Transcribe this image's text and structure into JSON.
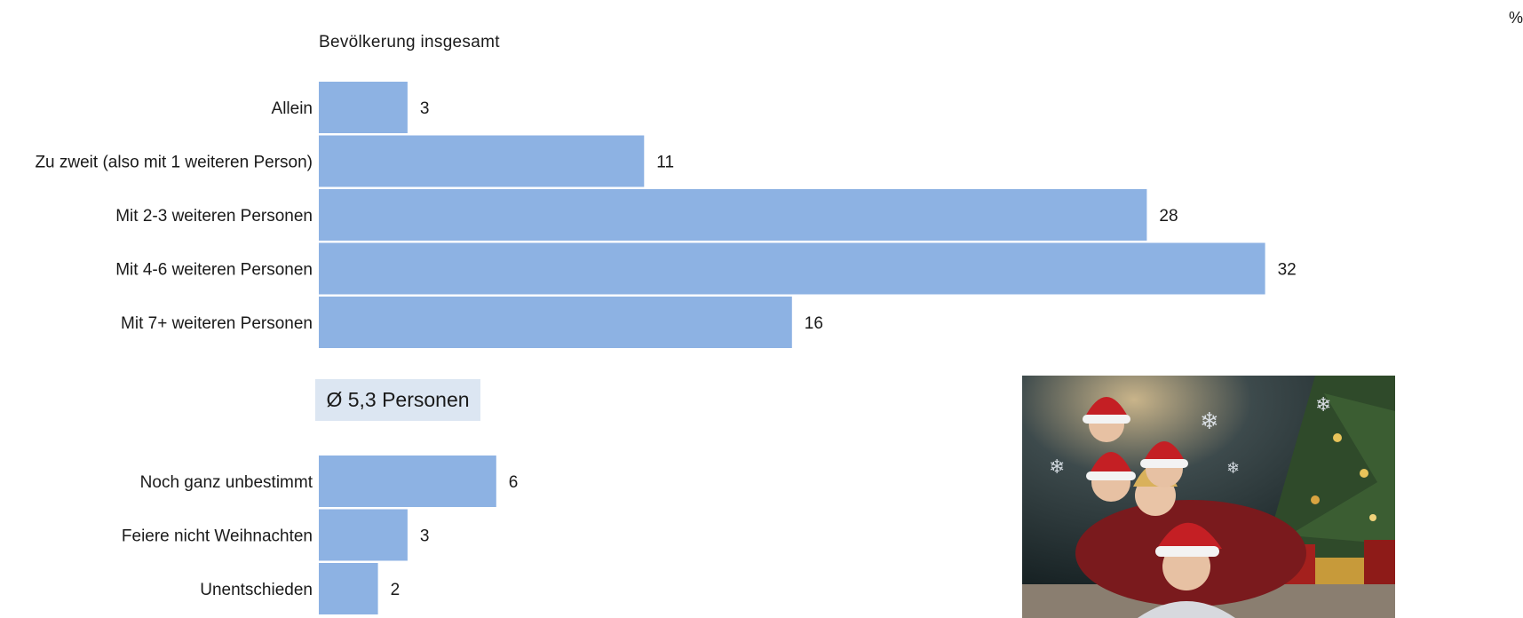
{
  "chart_data": [
    {
      "type": "bar",
      "orientation": "horizontal",
      "subtitle": "Bevölkerung insgesamt",
      "unit": "%",
      "categories": [
        "Allein",
        "Zu zweit (also mit 1 weiteren Person)",
        "Mit 2-3 weiteren Personen",
        "Mit 4-6 weiteren Personen",
        "Mit 7+ weiteren Personen"
      ],
      "values": [
        3,
        11,
        28,
        32,
        16
      ],
      "bar_color": "#8db2e3",
      "xlim": [
        0,
        35
      ],
      "grid": false
    },
    {
      "type": "bar",
      "orientation": "horizontal",
      "categories": [
        "Noch ganz unbestimmt",
        "Feiere nicht Weihnachten",
        "Unentschieden"
      ],
      "values": [
        6,
        3,
        2
      ],
      "bar_color": "#8db2e3",
      "xlim": [
        0,
        35
      ],
      "grid": false
    }
  ],
  "average_label": "Ø 5,3 Personen",
  "average_box_color": "#dce6f2",
  "photo": {
    "icon": "christmas-family-photo"
  }
}
